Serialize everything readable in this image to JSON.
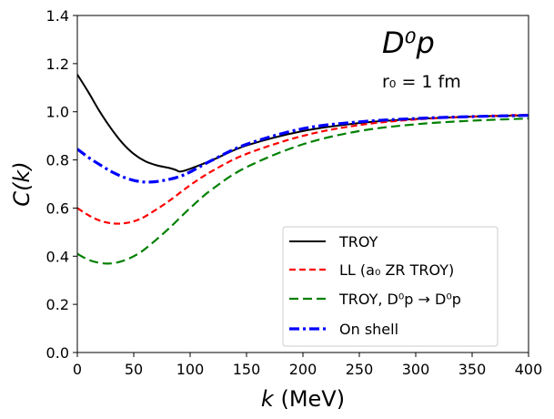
{
  "chart_data": {
    "type": "line",
    "xlabel_var": "k",
    "xlabel_unit": " (MeV)",
    "ylabel_var": "C(k)",
    "xlim": [
      0,
      400
    ],
    "ylim": [
      0,
      1.4
    ],
    "xticks": [
      0,
      50,
      100,
      150,
      200,
      250,
      300,
      350,
      400
    ],
    "yticks": [
      0.0,
      0.2,
      0.4,
      0.6,
      0.8,
      1.0,
      1.2,
      1.4
    ],
    "ytick_labels": [
      "0.0",
      "0.2",
      "0.4",
      "0.6",
      "0.8",
      "1.0",
      "1.2",
      "1.4"
    ],
    "annotation_main": "D⁰p",
    "annotation_sub": "r₀ = 1 fm",
    "legend_position": "lower-right",
    "series": [
      {
        "name": "TROY",
        "color": "#000000",
        "style": "solid",
        "x": [
          0,
          10,
          20,
          30,
          40,
          50,
          60,
          70,
          80,
          85,
          88,
          90,
          93,
          100,
          120,
          150,
          200,
          250,
          300,
          350,
          400
        ],
        "y": [
          1.155,
          1.08,
          1.0,
          0.93,
          0.87,
          0.825,
          0.795,
          0.778,
          0.768,
          0.762,
          0.757,
          0.752,
          0.753,
          0.763,
          0.8,
          0.86,
          0.92,
          0.953,
          0.97,
          0.98,
          0.985
        ]
      },
      {
        "name": "LL (a₀ ZR TROY)",
        "color": "#ff0000",
        "style": "dashed",
        "x": [
          0,
          10,
          20,
          30,
          40,
          50,
          60,
          80,
          100,
          120,
          150,
          200,
          250,
          300,
          350,
          400
        ],
        "y": [
          0.6,
          0.57,
          0.548,
          0.537,
          0.536,
          0.545,
          0.565,
          0.625,
          0.695,
          0.755,
          0.825,
          0.9,
          0.945,
          0.968,
          0.98,
          0.988
        ]
      },
      {
        "name": "TROY, D⁰p → D⁰p",
        "color": "#008000",
        "style": "longdash",
        "x": [
          0,
          10,
          20,
          30,
          40,
          50,
          60,
          80,
          100,
          120,
          150,
          200,
          250,
          300,
          350,
          400
        ],
        "y": [
          0.41,
          0.385,
          0.372,
          0.37,
          0.38,
          0.4,
          0.43,
          0.51,
          0.6,
          0.68,
          0.77,
          0.865,
          0.92,
          0.948,
          0.963,
          0.972
        ]
      },
      {
        "name": "On shell",
        "color": "#0000ff",
        "style": "dashdot",
        "x": [
          0,
          10,
          20,
          30,
          40,
          50,
          60,
          70,
          80,
          90,
          100,
          120,
          150,
          200,
          250,
          300,
          350,
          400
        ],
        "y": [
          0.845,
          0.81,
          0.78,
          0.752,
          0.73,
          0.715,
          0.708,
          0.71,
          0.718,
          0.73,
          0.75,
          0.8,
          0.865,
          0.93,
          0.958,
          0.972,
          0.98,
          0.985
        ]
      }
    ]
  }
}
